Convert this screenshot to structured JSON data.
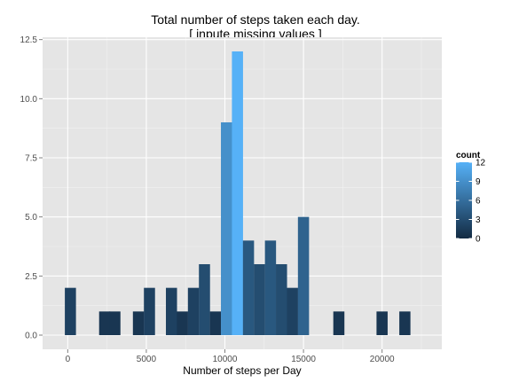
{
  "chart_data": {
    "type": "bar",
    "title": "Total number of steps taken each day.",
    "subtitle": "[ inpute missing values ]",
    "xlabel": "Number of steps per Day",
    "ylabel": "",
    "xlim": [
      -1600,
      23800
    ],
    "ylim": [
      -0.6,
      12.6
    ],
    "x_ticks": [
      0,
      5000,
      10000,
      15000,
      20000
    ],
    "x_tick_labels": [
      "0",
      "5000",
      "10000",
      "15000",
      "20000"
    ],
    "y_ticks": [
      0,
      2.5,
      5,
      7.5,
      10,
      12.5
    ],
    "y_tick_labels": [
      "0.0",
      "2.5",
      "5.0",
      "7.5",
      "10.0",
      "12.5"
    ],
    "bin_width": 707,
    "bins": [
      {
        "x": 170,
        "count": 2
      },
      {
        "x": 2350,
        "count": 1
      },
      {
        "x": 3000,
        "count": 1
      },
      {
        "x": 4500,
        "count": 1
      },
      {
        "x": 5200,
        "count": 2
      },
      {
        "x": 6600,
        "count": 2
      },
      {
        "x": 7300,
        "count": 1
      },
      {
        "x": 8000,
        "count": 2
      },
      {
        "x": 8700,
        "count": 3
      },
      {
        "x": 9400,
        "count": 1
      },
      {
        "x": 10100,
        "count": 9
      },
      {
        "x": 10800,
        "count": 12
      },
      {
        "x": 11500,
        "count": 4
      },
      {
        "x": 12200,
        "count": 3
      },
      {
        "x": 12900,
        "count": 4
      },
      {
        "x": 13600,
        "count": 3
      },
      {
        "x": 14300,
        "count": 2
      },
      {
        "x": 15000,
        "count": 5
      },
      {
        "x": 17250,
        "count": 1
      },
      {
        "x": 20000,
        "count": 1
      },
      {
        "x": 21450,
        "count": 1
      }
    ],
    "legend": {
      "title": "count",
      "position": "right",
      "ticks": [
        0,
        3,
        6,
        9,
        12
      ],
      "tick_labels": [
        "0",
        "3",
        "6",
        "9",
        "12"
      ]
    },
    "colors": {
      "low": "#132B43",
      "high": "#56B1F7",
      "panel_background": "#E5E5E5",
      "grid_major": "#FFFFFF",
      "grid_minor": "#F2F2F2"
    },
    "grid": true
  }
}
